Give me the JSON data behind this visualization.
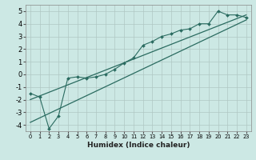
{
  "xlabel": "Humidex (Indice chaleur)",
  "ylabel": "",
  "bg_color": "#cce8e4",
  "grid_color": "#b0c8c4",
  "line_color": "#2a6b60",
  "xlim": [
    -0.5,
    23.5
  ],
  "ylim": [
    -4.5,
    5.5
  ],
  "yticks": [
    -4,
    -3,
    -2,
    -1,
    0,
    1,
    2,
    3,
    4,
    5
  ],
  "xticks": [
    0,
    1,
    2,
    3,
    4,
    5,
    6,
    7,
    8,
    9,
    10,
    11,
    12,
    13,
    14,
    15,
    16,
    17,
    18,
    19,
    20,
    21,
    22,
    23
  ],
  "data_x": [
    0,
    1,
    2,
    3,
    4,
    5,
    6,
    7,
    8,
    9,
    10,
    11,
    12,
    13,
    14,
    15,
    16,
    17,
    18,
    19,
    20,
    21,
    22,
    23
  ],
  "data_y_main": [
    -1.5,
    -1.8,
    -4.3,
    -3.3,
    -0.3,
    -0.2,
    -0.3,
    -0.2,
    0.0,
    0.4,
    0.9,
    1.3,
    2.3,
    2.6,
    3.0,
    3.2,
    3.5,
    3.6,
    4.0,
    4.0,
    5.0,
    4.7,
    4.7,
    4.5
  ],
  "line1_x": [
    0,
    23
  ],
  "line1_y": [
    -2.0,
    4.7
  ],
  "line2_x": [
    0,
    23
  ],
  "line2_y": [
    -3.8,
    4.3
  ]
}
